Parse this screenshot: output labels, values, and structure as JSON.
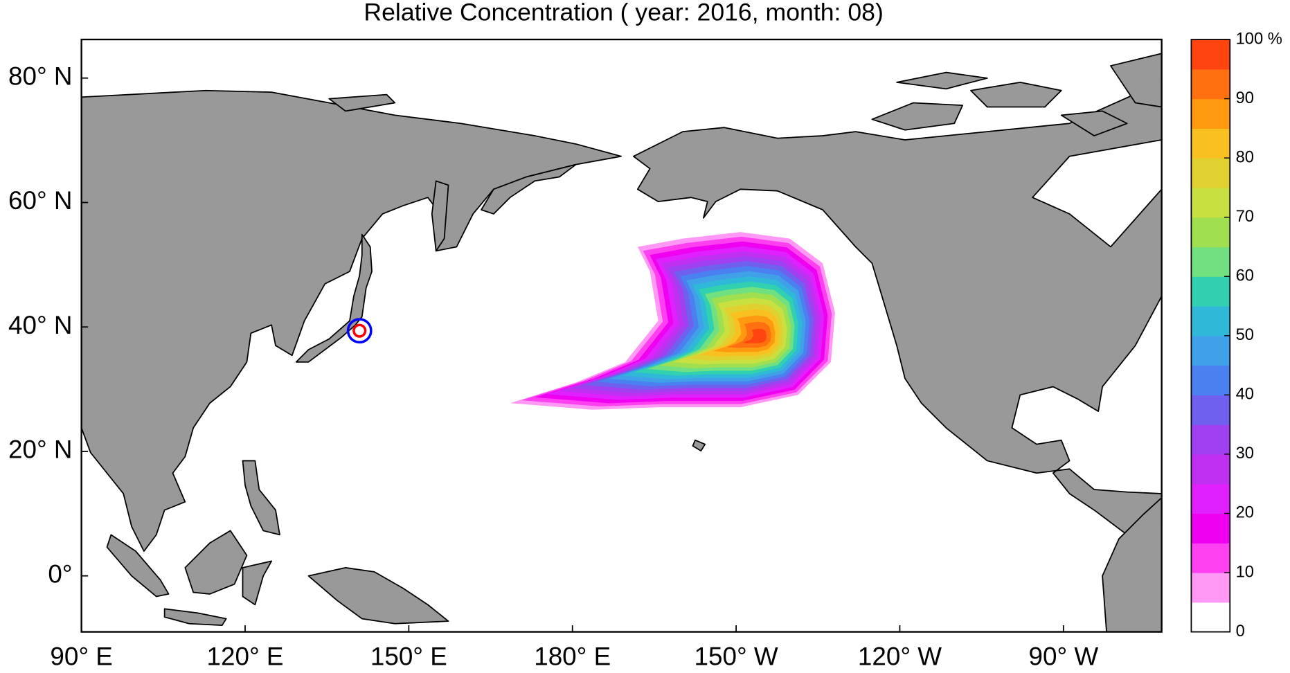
{
  "title": "Relative Concentration ( year: 2016, month: 08)",
  "map": {
    "lon_lim": [
      90,
      288
    ],
    "lat_lim": [
      -9,
      86.2
    ],
    "lon_ticks": [
      {
        "value": 90,
        "label": "90° E"
      },
      {
        "value": 120,
        "label": "120° E"
      },
      {
        "value": 150,
        "label": "150° E"
      },
      {
        "value": 180,
        "label": "180° E"
      },
      {
        "value": 210,
        "label": "150° W"
      },
      {
        "value": 240,
        "label": "120° W"
      },
      {
        "value": 270,
        "label": "90° W"
      }
    ],
    "lat_ticks": [
      {
        "value": 80,
        "label": "80° N"
      },
      {
        "value": 60,
        "label": "60° N"
      },
      {
        "value": 40,
        "label": "40° N"
      },
      {
        "value": 20,
        "label": "20° N"
      },
      {
        "value": 0,
        "label": "0°"
      }
    ]
  },
  "colorbar": {
    "lim": [
      0,
      100
    ],
    "colors": [
      "#ffffff",
      "#ff99f5",
      "#ff40f0",
      "#f000f0",
      "#e020ff",
      "#c030f0",
      "#a040f0",
      "#7060f0",
      "#4a80f0",
      "#40a0e8",
      "#30b8d8",
      "#30d0b0",
      "#70e080",
      "#a0e050",
      "#c8e040",
      "#e0d030",
      "#f8c020",
      "#ff9910",
      "#ff7010",
      "#ff4410"
    ],
    "ticks": [
      0,
      10,
      20,
      30,
      40,
      50,
      60,
      70,
      80,
      90,
      {
        "value": 100,
        "label": "100 %"
      }
    ]
  }
}
